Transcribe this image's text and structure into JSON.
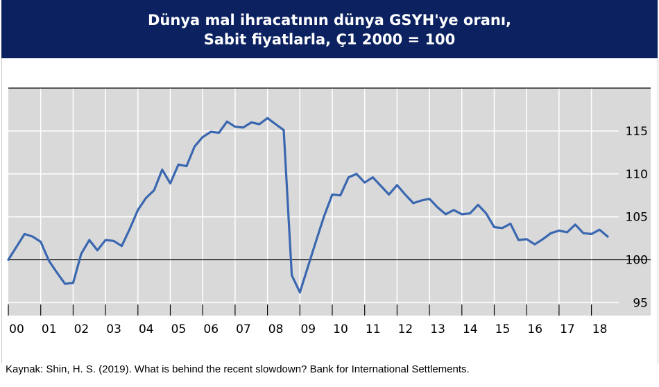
{
  "header": {
    "title": "Dünya mal ihracatının dünya GSYH'ye oranı,",
    "subtitle": "Sabit fiyatlarla, Ç1 2000 = 100"
  },
  "source": "Kaynak: Shin, H. S. (2019). What is behind the recent slowdown? Bank for International Settlements.",
  "colors": {
    "header_bg": "#0b2160",
    "line": "#3a67b0",
    "plot_bg": "#d9d9d9",
    "grid": "#ffffff"
  },
  "chart_data": {
    "type": "line",
    "title": "Dünya mal ihracatının dünya GSYH'ye oranı,",
    "subtitle": "Sabit fiyatlarla, Ç1 2000 = 100",
    "x_tick_labels": [
      "00",
      "01",
      "02",
      "03",
      "04",
      "05",
      "06",
      "07",
      "08",
      "09",
      "10",
      "11",
      "12",
      "13",
      "14",
      "15",
      "16",
      "17",
      "18"
    ],
    "y_ticks": [
      95,
      100,
      105,
      110,
      115
    ],
    "ylim": [
      93.5,
      120
    ],
    "y_axis_side": "right",
    "reference_line": 100,
    "grid": true,
    "x": [
      2000.0,
      2000.25,
      2000.5,
      2000.75,
      2001.0,
      2001.25,
      2001.5,
      2001.75,
      2002.0,
      2002.25,
      2002.5,
      2002.75,
      2003.0,
      2003.25,
      2003.5,
      2003.75,
      2004.0,
      2004.25,
      2004.5,
      2004.75,
      2005.0,
      2005.25,
      2005.5,
      2005.75,
      2006.0,
      2006.25,
      2006.5,
      2006.75,
      2007.0,
      2007.25,
      2007.5,
      2007.75,
      2008.0,
      2008.25,
      2008.5,
      2008.75,
      2009.0,
      2009.25,
      2009.5,
      2009.75,
      2010.0,
      2010.25,
      2010.5,
      2010.75,
      2011.0,
      2011.25,
      2011.5,
      2011.75,
      2012.0,
      2012.25,
      2012.5,
      2012.75,
      2013.0,
      2013.25,
      2013.5,
      2013.75,
      2014.0,
      2014.25,
      2014.5,
      2014.75,
      2015.0,
      2015.25,
      2015.5,
      2015.75,
      2016.0,
      2016.25,
      2016.5,
      2016.75,
      2017.0,
      2017.25,
      2017.5,
      2017.75,
      2018.0,
      2018.25,
      2018.5
    ],
    "series": [
      {
        "values": [
          100.0,
          101.5,
          103.0,
          102.7,
          102.1,
          99.9,
          98.5,
          97.2,
          97.3,
          100.7,
          102.3,
          101.1,
          102.3,
          102.2,
          101.6,
          103.6,
          105.8,
          107.2,
          108.1,
          110.5,
          108.9,
          111.1,
          110.9,
          113.2,
          114.3,
          114.9,
          114.8,
          116.1,
          115.5,
          115.4,
          116.0,
          115.8,
          116.5,
          115.8,
          115.1,
          98.2,
          96.2,
          99.2,
          102.2,
          105.1,
          107.6,
          107.5,
          109.6,
          110.0,
          109.0,
          109.6,
          108.6,
          107.6,
          108.7,
          107.6,
          106.6,
          106.9,
          107.1,
          106.1,
          105.3,
          105.8,
          105.3,
          105.4,
          106.4,
          105.4,
          103.8,
          103.7,
          104.2,
          102.3,
          102.4,
          101.8,
          102.4,
          103.1,
          103.4,
          103.2,
          104.1,
          103.1,
          103.0,
          103.5,
          102.7
        ]
      }
    ]
  }
}
